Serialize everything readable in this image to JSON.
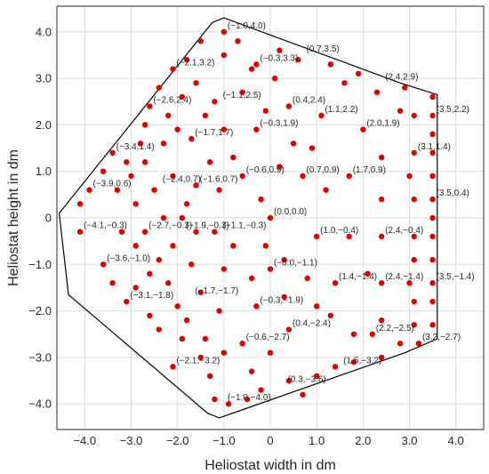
{
  "chart_data": {
    "type": "scatter",
    "xlabel": "Heliostat width in dm",
    "ylabel": "Heliostat height in dm",
    "xlim": [
      -4.6,
      4.6
    ],
    "ylim": [
      -4.55,
      4.55
    ],
    "xticks": [
      -4,
      -3,
      -2,
      -1,
      0,
      1,
      2,
      3,
      4
    ],
    "xtick_labels": [
      "−4.0",
      "−3.0",
      "−2.0",
      "−1.0",
      "0",
      "1.0",
      "2.0",
      "3.0",
      "4.0"
    ],
    "yticks": [
      -4,
      -3,
      -2,
      -1,
      0,
      1,
      2,
      3,
      4
    ],
    "ytick_labels": [
      "−4.0",
      "−3.0",
      "−2.0",
      "−1.0",
      "0",
      "1.0",
      "2.0",
      "3.0",
      "4.0"
    ],
    "grid": true,
    "marker_color": "#e00000",
    "outline_color": "#000000",
    "outline": [
      [
        -1.25,
        4.2
      ],
      [
        -1.0,
        4.3
      ],
      [
        2.8,
        2.9
      ],
      [
        3.6,
        2.65
      ],
      [
        3.6,
        -2.6
      ],
      [
        2.9,
        -2.9
      ],
      [
        -1.1,
        -4.3
      ],
      [
        -1.35,
        -4.2
      ],
      [
        -4.35,
        -1.65
      ],
      [
        -4.55,
        0.1
      ]
    ],
    "points": [
      [
        -4.1,
        0.3
      ],
      [
        -4.1,
        -0.3
      ],
      [
        -3.9,
        0.6
      ],
      [
        -3.6,
        1.0
      ],
      [
        -3.6,
        -1.0
      ],
      [
        -3.4,
        1.4
      ],
      [
        -3.4,
        -1.4
      ],
      [
        -3.3,
        0.6
      ],
      [
        -3.2,
        -0.3
      ],
      [
        -3.1,
        1.2
      ],
      [
        -3.1,
        -1.8
      ],
      [
        -3.0,
        0.9
      ],
      [
        -2.9,
        0.3
      ],
      [
        -2.9,
        -0.6
      ],
      [
        -2.9,
        -1.5
      ],
      [
        -2.8,
        1.6
      ],
      [
        -2.7,
        2.0
      ],
      [
        -2.7,
        1.2
      ],
      [
        -2.7,
        -0.3
      ],
      [
        -2.6,
        2.4
      ],
      [
        -2.6,
        -1.2
      ],
      [
        -2.6,
        -2.1
      ],
      [
        -2.5,
        0.6
      ],
      [
        -2.4,
        2.8
      ],
      [
        -2.4,
        -0.9
      ],
      [
        -2.4,
        -2.4
      ],
      [
        -2.3,
        1.6
      ],
      [
        -2.3,
        0.0
      ],
      [
        -2.2,
        2.2
      ],
      [
        -2.2,
        -1.4
      ],
      [
        -2.1,
        3.2
      ],
      [
        -2.1,
        0.9
      ],
      [
        -2.1,
        -0.6
      ],
      [
        -2.1,
        -3.2
      ],
      [
        -2.0,
        1.9
      ],
      [
        -2.0,
        -1.9
      ],
      [
        -1.9,
        2.6
      ],
      [
        -1.9,
        0.0
      ],
      [
        -1.9,
        -2.6
      ],
      [
        -1.8,
        3.4
      ],
      [
        -1.8,
        0.3
      ],
      [
        -1.8,
        -2.2
      ],
      [
        -1.7,
        1.7
      ],
      [
        -1.7,
        -1.0
      ],
      [
        -1.6,
        2.9
      ],
      [
        -1.6,
        0.7
      ],
      [
        -1.6,
        -0.3
      ],
      [
        -1.5,
        3.8
      ],
      [
        -1.5,
        -1.6
      ],
      [
        -1.5,
        -3.0
      ],
      [
        -1.4,
        2.2
      ],
      [
        -1.4,
        -2.6
      ],
      [
        -1.3,
        1.2
      ],
      [
        -1.3,
        -3.4
      ],
      [
        -1.2,
        2.5
      ],
      [
        -1.2,
        -0.3
      ],
      [
        -1.2,
        -3.9
      ],
      [
        -1.1,
        0.6
      ],
      [
        -1.1,
        -2.0
      ],
      [
        -1.0,
        4.0
      ],
      [
        -1.0,
        3.5
      ],
      [
        -1.0,
        1.9
      ],
      [
        -1.0,
        -1.1
      ],
      [
        -1.0,
        -2.9
      ],
      [
        -0.9,
        -4.0
      ],
      [
        -0.8,
        1.3
      ],
      [
        -0.8,
        -0.6
      ],
      [
        -0.7,
        3.8
      ],
      [
        -0.6,
        2.7
      ],
      [
        -0.6,
        0.9
      ],
      [
        -0.6,
        -2.7
      ],
      [
        -0.5,
        -3.9
      ],
      [
        -0.4,
        3.2
      ],
      [
        -0.4,
        -1.3
      ],
      [
        -0.4,
        -3.3
      ],
      [
        -0.3,
        3.3
      ],
      [
        -0.3,
        1.9
      ],
      [
        -0.3,
        -1.9
      ],
      [
        -0.2,
        0.4
      ],
      [
        -0.2,
        -3.7
      ],
      [
        -0.1,
        2.3
      ],
      [
        -0.1,
        -0.6
      ],
      [
        0.0,
        0.0
      ],
      [
        0.0,
        -1.1
      ],
      [
        0.0,
        -2.9
      ],
      [
        0.1,
        3.0
      ],
      [
        0.2,
        1.1
      ],
      [
        0.2,
        3.6
      ],
      [
        0.3,
        -0.9
      ],
      [
        0.3,
        -1.7
      ],
      [
        0.4,
        2.4
      ],
      [
        0.4,
        -2.4
      ],
      [
        0.4,
        -3.5
      ],
      [
        0.5,
        1.6
      ],
      [
        0.6,
        3.4
      ],
      [
        0.7,
        0.9
      ],
      [
        0.7,
        -3.8
      ],
      [
        0.8,
        -1.3
      ],
      [
        0.9,
        1.5
      ],
      [
        1.0,
        -0.4
      ],
      [
        1.0,
        -1.9
      ],
      [
        1.0,
        -3.4
      ],
      [
        1.1,
        2.2
      ],
      [
        1.2,
        0.6
      ],
      [
        1.3,
        3.3
      ],
      [
        1.3,
        -2.1
      ],
      [
        1.4,
        -1.4
      ],
      [
        1.4,
        -3.2
      ],
      [
        1.6,
        2.9
      ],
      [
        1.7,
        0.9
      ],
      [
        1.7,
        -0.4
      ],
      [
        1.8,
        -2.5
      ],
      [
        1.8,
        -3.1
      ],
      [
        1.9,
        3.1
      ],
      [
        2.0,
        1.9
      ],
      [
        2.1,
        -1.2
      ],
      [
        2.2,
        -2.5
      ],
      [
        2.3,
        2.7
      ],
      [
        2.4,
        1.3
      ],
      [
        2.4,
        0.4
      ],
      [
        2.4,
        -0.4
      ],
      [
        2.4,
        -1.4
      ],
      [
        2.4,
        -2.2
      ],
      [
        2.4,
        -3.0
      ],
      [
        2.8,
        2.3
      ],
      [
        2.8,
        -2.7
      ],
      [
        2.9,
        2.8
      ],
      [
        3.0,
        0.9
      ],
      [
        3.0,
        -1.4
      ],
      [
        3.1,
        2.2
      ],
      [
        3.1,
        1.4
      ],
      [
        3.1,
        0.4
      ],
      [
        3.1,
        -0.4
      ],
      [
        3.1,
        -0.9
      ],
      [
        3.1,
        -1.8
      ],
      [
        3.1,
        -2.3
      ],
      [
        3.2,
        -2.7
      ],
      [
        3.5,
        2.6
      ],
      [
        3.5,
        2.2
      ],
      [
        3.5,
        1.8
      ],
      [
        3.5,
        1.4
      ],
      [
        3.5,
        0.9
      ],
      [
        3.5,
        0.4
      ],
      [
        3.5,
        0.0
      ],
      [
        3.5,
        -0.4
      ],
      [
        3.5,
        -0.9
      ],
      [
        3.5,
        -1.4
      ],
      [
        3.5,
        -1.8
      ],
      [
        3.5,
        -2.3
      ]
    ],
    "annotations": [
      {
        "text": "(−1.0,4.0)",
        "x": -1.0,
        "y": 4.0
      },
      {
        "text": "(0.7,3.5)",
        "x": 0.7,
        "y": 3.5
      },
      {
        "text": "(−0.3,3.3)",
        "x": -0.3,
        "y": 3.3
      },
      {
        "text": "(2.4,2.9)",
        "x": 2.4,
        "y": 2.9
      },
      {
        "text": "(−2.1,3.2)",
        "x": -2.1,
        "y": 3.2
      },
      {
        "text": "(0.4,2.4)",
        "x": 0.4,
        "y": 2.4
      },
      {
        "text": "(−2.6,2.4)",
        "x": -2.6,
        "y": 2.4
      },
      {
        "text": "(−1.1,2.5)",
        "x": -1.1,
        "y": 2.5
      },
      {
        "text": "(1.1,2.2)",
        "x": 1.1,
        "y": 2.2
      },
      {
        "text": "(3.5,2.2)",
        "x": 3.5,
        "y": 2.2
      },
      {
        "text": "(−0.3,1.9)",
        "x": -0.3,
        "y": 1.9
      },
      {
        "text": "(2.0,1.9)",
        "x": 2.0,
        "y": 1.9
      },
      {
        "text": "(−1.7,1.7)",
        "x": -1.7,
        "y": 1.7
      },
      {
        "text": "(−3.4,1.4)",
        "x": -3.4,
        "y": 1.4
      },
      {
        "text": "(3.1,1.4)",
        "x": 3.1,
        "y": 1.4
      },
      {
        "text": "(−2.4,0.7)",
        "x": -2.4,
        "y": 0.7
      },
      {
        "text": "(−0.6,0.9)",
        "x": -0.6,
        "y": 0.9
      },
      {
        "text": "(0.7,0.9)",
        "x": 0.7,
        "y": 0.9
      },
      {
        "text": "(1.7,0.9)",
        "x": 1.7,
        "y": 0.9
      },
      {
        "text": "(−3.9,0.6)",
        "x": -3.9,
        "y": 0.6
      },
      {
        "text": "(−1.6,0.7)",
        "x": -1.6,
        "y": 0.7
      },
      {
        "text": "(3.5,0.4)",
        "x": 3.5,
        "y": 0.4
      },
      {
        "text": "(0.0,0.0)",
        "x": 0.0,
        "y": 0.0
      },
      {
        "text": "(−4.1,−0.3)",
        "x": -4.1,
        "y": -0.3
      },
      {
        "text": "(−1.9,−0.3)",
        "x": -1.9,
        "y": -0.3
      },
      {
        "text": "(−1.1,−0.3)",
        "x": -1.1,
        "y": -0.3
      },
      {
        "text": "(1.0,−0.4)",
        "x": 1.0,
        "y": -0.4
      },
      {
        "text": "(2.4,−0.4)",
        "x": 2.4,
        "y": -0.4
      },
      {
        "text": "(−2.7,−0.3)",
        "x": -2.7,
        "y": -0.3
      },
      {
        "text": "(−3.6,−1.0)",
        "x": -3.6,
        "y": -1.0
      },
      {
        "text": "(−0.0,−1.1)",
        "x": 0.0,
        "y": -1.1
      },
      {
        "text": "(1.4,−1.4)",
        "x": 1.4,
        "y": -1.4
      },
      {
        "text": "(3.5,−1.4)",
        "x": 3.5,
        "y": -1.4
      },
      {
        "text": "(2.4,−1.4)",
        "x": 2.4,
        "y": -1.4
      },
      {
        "text": "(−3.1,−1.8)",
        "x": -3.1,
        "y": -1.8
      },
      {
        "text": "(−1.7,−1.7)",
        "x": -1.7,
        "y": -1.7
      },
      {
        "text": "(−0.3,−1.9)",
        "x": -0.3,
        "y": -1.9
      },
      {
        "text": "(0.4,−2.4)",
        "x": 0.4,
        "y": -2.4
      },
      {
        "text": "(2.2,−2.5)",
        "x": 2.2,
        "y": -2.5
      },
      {
        "text": "(−0.6,−2.7)",
        "x": -0.6,
        "y": -2.7
      },
      {
        "text": "(3.2,−2.7)",
        "x": 3.2,
        "y": -2.7
      },
      {
        "text": "(−2.1,−3.2)",
        "x": -2.1,
        "y": -3.2
      },
      {
        "text": "(1.5,−3.2)",
        "x": 1.5,
        "y": -3.2
      },
      {
        "text": "(0.3,−3.6)",
        "x": 0.3,
        "y": -3.6
      },
      {
        "text": "(−1.0,−4.0)",
        "x": -1.0,
        "y": -4.0
      }
    ]
  }
}
